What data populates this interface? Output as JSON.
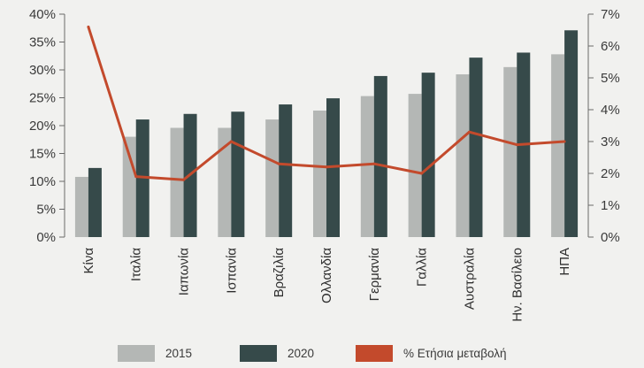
{
  "chart_data": {
    "type": "bar",
    "categories": [
      "Κίνα",
      "Ιταλία",
      "Ιαπωνία",
      "Ισπανία",
      "Βραζιλία",
      "Ολλανδία",
      "Γερμανία",
      "Γαλλία",
      "Αυστραλία",
      "Ην. Βασίλειο",
      "ΗΠΑ"
    ],
    "series": [
      {
        "name": "2015",
        "type": "bar",
        "axis": "left",
        "color": "#b4b7b5",
        "values": [
          10.8,
          18.0,
          19.6,
          19.6,
          21.1,
          22.7,
          25.3,
          25.7,
          29.2,
          30.5,
          32.8
        ]
      },
      {
        "name": "2020",
        "type": "bar",
        "axis": "left",
        "color": "#364a4a",
        "values": [
          12.4,
          21.1,
          22.1,
          22.5,
          23.8,
          24.9,
          28.9,
          29.5,
          32.2,
          33.1,
          37.1
        ]
      },
      {
        "name": "% Ετήσια μεταβολή",
        "type": "line",
        "axis": "right",
        "color": "#c34a2c",
        "values": [
          6.6,
          1.9,
          1.8,
          3.0,
          2.3,
          2.2,
          2.3,
          2.0,
          3.3,
          2.9,
          3.0
        ]
      }
    ],
    "y_left": {
      "range": [
        0,
        40
      ],
      "ticks": [
        "0%",
        "5%",
        "10%",
        "15%",
        "20%",
        "25%",
        "30%",
        "35%",
        "40%"
      ]
    },
    "y_right": {
      "range": [
        0,
        7
      ],
      "ticks": [
        "0%",
        "1%",
        "2%",
        "3%",
        "4%",
        "5%",
        "6%",
        "7%"
      ]
    },
    "grid": false,
    "legend": "bottom"
  }
}
